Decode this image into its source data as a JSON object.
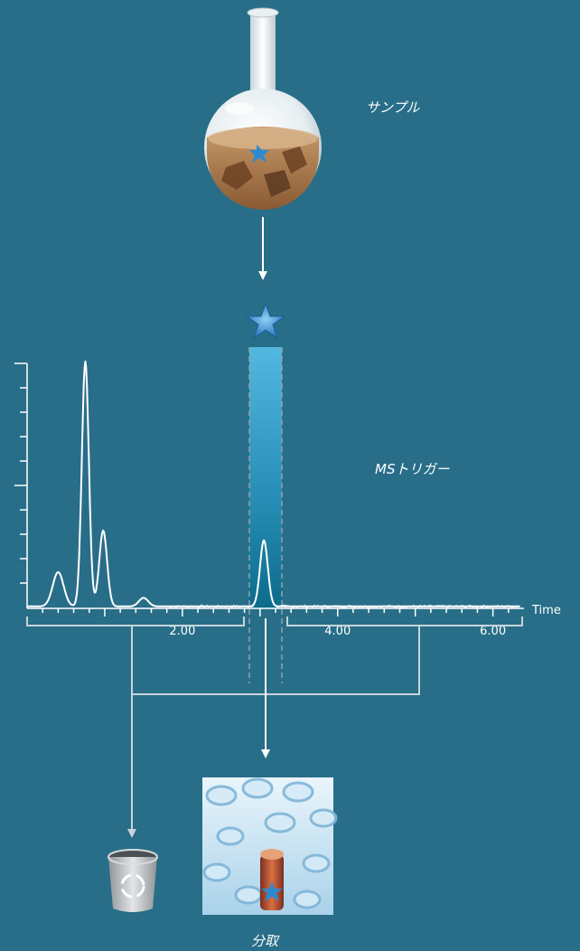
{
  "labels": {
    "sample": "サンプル",
    "trigger": "MSトリガー",
    "fraction": "分取"
  },
  "chart_data": {
    "type": "line",
    "x_axis_label": "Time",
    "x_ticks": [
      "2.00",
      "4.00",
      "6.00"
    ],
    "x_tick_values": [
      2.0,
      4.0,
      6.0
    ],
    "xlim": [
      0.0,
      6.4
    ],
    "ylim": [
      0,
      100
    ],
    "grid": false,
    "peaks": [
      {
        "time": 0.4,
        "height": 14
      },
      {
        "time": 0.75,
        "height": 100
      },
      {
        "time": 0.98,
        "height": 31
      },
      {
        "time": 1.5,
        "height": 3.5
      },
      {
        "time": 3.05,
        "height": 27
      }
    ],
    "trigger_window": [
      2.88,
      3.23
    ]
  },
  "colors": {
    "background": "#286e88",
    "trigger_band_top": "#52b8e0",
    "trigger_band_bottom": "#0b7090",
    "trace": "#ffffff",
    "bracket": "#c8d4da"
  },
  "icons": {
    "flask": "round-bottom-flask",
    "star": "blue-star",
    "trash": "recycle-bin",
    "tubes": "test-tubes"
  }
}
